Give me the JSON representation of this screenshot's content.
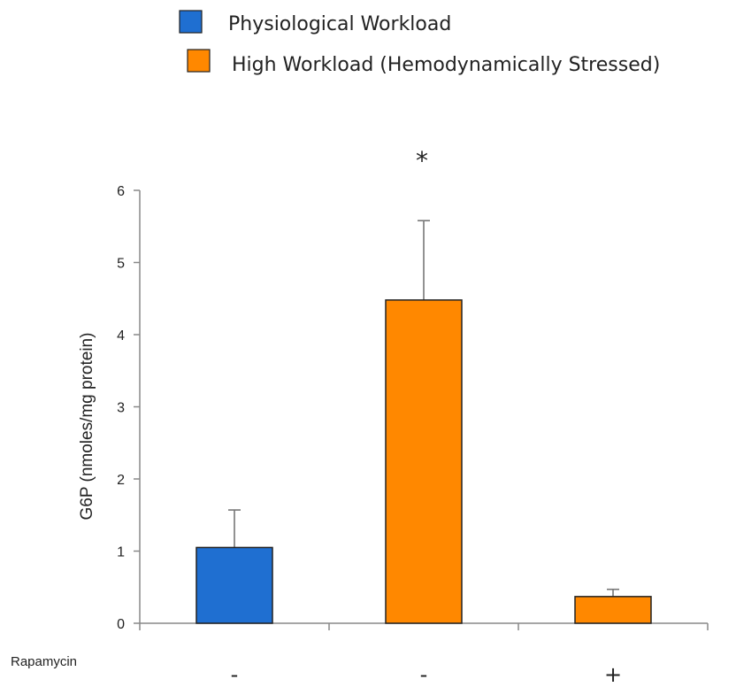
{
  "chart_data": {
    "type": "bar",
    "categories": [
      "-",
      "-",
      "+"
    ],
    "row_label": "Rapamycin",
    "ylabel": "G6P (nmoles/mg protein)",
    "ylim": [
      0,
      6
    ],
    "yticks": [
      0,
      1,
      2,
      3,
      4,
      5,
      6
    ],
    "bars": [
      {
        "value": 1.05,
        "error": 0.52,
        "series": 0
      },
      {
        "value": 4.48,
        "error": 1.1,
        "series": 1
      },
      {
        "value": 0.37,
        "error": 0.1,
        "series": 1
      }
    ],
    "legend": [
      {
        "name": "Physiological Workload",
        "color": "#1f6fd1"
      },
      {
        "name": "High Workload (Hemodynamically Stressed)",
        "color": "#ff8800"
      }
    ],
    "legend_position": "top",
    "annotation": {
      "text": "*",
      "bar_index": 1
    },
    "grid": false
  }
}
